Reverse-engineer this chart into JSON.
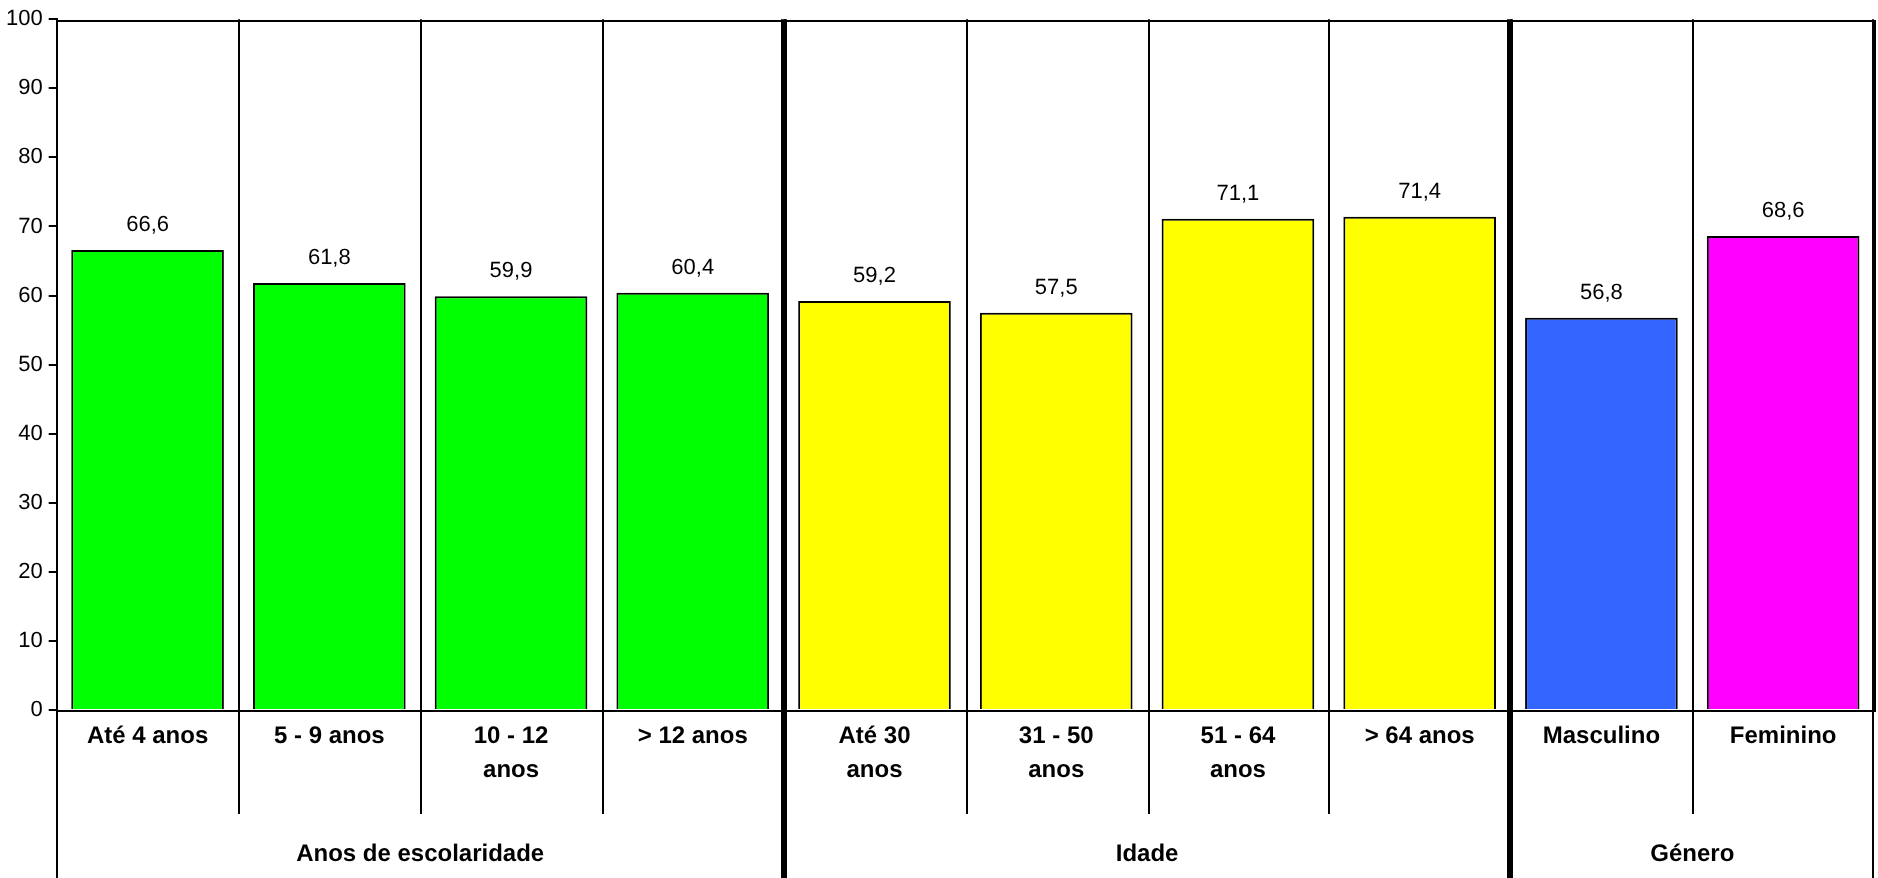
{
  "chart_data": {
    "type": "bar",
    "categories": [
      "Até 4 anos",
      "5 - 9 anos",
      "10 - 12 anos",
      "> 12 anos",
      "Até 30 anos",
      "31 - 50 anos",
      "51 - 64 anos",
      "> 64 anos",
      "Masculino",
      "Feminino"
    ],
    "values": [
      66.6,
      61.8,
      59.9,
      60.4,
      59.2,
      57.5,
      71.1,
      71.4,
      56.8,
      68.6
    ],
    "colors": [
      "#00ff00",
      "#00ff00",
      "#00ff00",
      "#00ff00",
      "#ffff00",
      "#ffff00",
      "#ffff00",
      "#ffff00",
      "#3366ff",
      "#ff00ff"
    ],
    "annotations": [
      "Anos de escolaridade",
      "Idade",
      "Género"
    ],
    "value_labels": [
      "66,6",
      "61,8",
      "59,9",
      "60,4",
      "59,2",
      "57,5",
      "71,1",
      "71,4",
      "56,8",
      "68,6"
    ],
    "ylim": [
      0,
      100
    ],
    "yticks": [
      0,
      10,
      20,
      30,
      40,
      50,
      60,
      70,
      80,
      90,
      100
    ],
    "grid": "x",
    "legend": false
  }
}
